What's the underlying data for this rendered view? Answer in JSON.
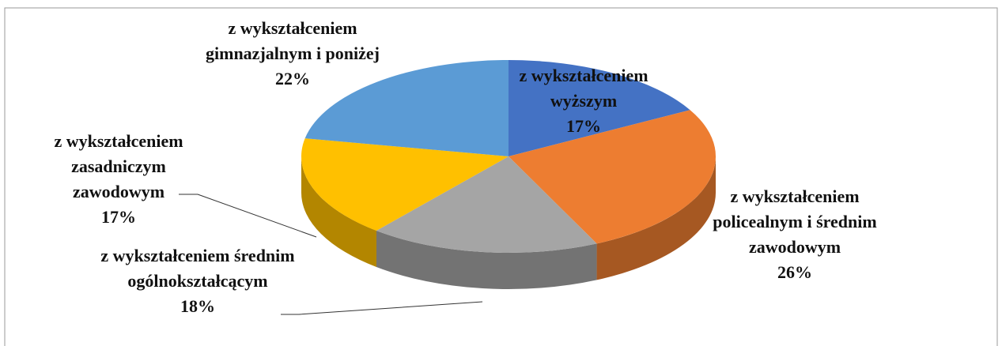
{
  "chart_data": {
    "type": "pie",
    "categories": [
      "z wykształceniem wyższym",
      "z wykształceniem policealnym i średnim zawodowym",
      "z wykształceniem średnim ogólnokształcącym",
      "z wykształceniem zasadniczym zawodowym",
      "z wykształceniem gimnazjalnym i poniżej"
    ],
    "values": [
      17,
      26,
      18,
      17,
      22
    ],
    "value_labels": [
      "17%",
      "26%",
      "18%",
      "17%",
      "22%"
    ],
    "colors": [
      "#4472c4",
      "#ed7d31",
      "#a5a5a5",
      "#ffc000",
      "#5b9bd5"
    ]
  }
}
